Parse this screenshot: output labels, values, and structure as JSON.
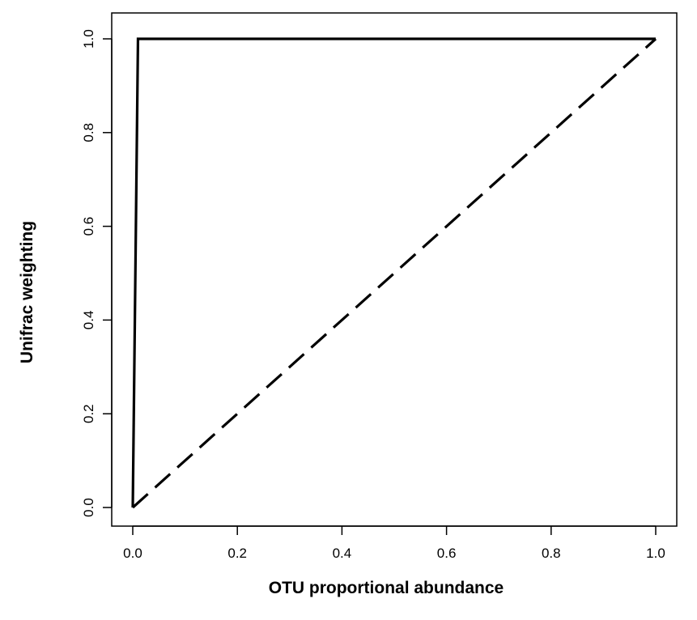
{
  "chart_data": {
    "type": "line",
    "xlabel": "OTU proportional abundance",
    "ylabel": "Unifrac weighting",
    "xlim": [
      0,
      1
    ],
    "ylim": [
      0,
      1
    ],
    "x_ticks": [
      "0.0",
      "0.2",
      "0.4",
      "0.6",
      "0.8",
      "1.0"
    ],
    "y_ticks": [
      "0.0",
      "0.2",
      "0.4",
      "0.6",
      "0.8",
      "1.0"
    ],
    "grid": false,
    "legend": "none",
    "series": [
      {
        "style": "solid",
        "color": "#000000",
        "x": [
          0,
          0.01,
          1.0
        ],
        "y": [
          0,
          1.0,
          1.0
        ]
      },
      {
        "style": "dashed",
        "color": "#000000",
        "x": [
          0,
          1.0
        ],
        "y": [
          0,
          1.0
        ]
      }
    ]
  }
}
